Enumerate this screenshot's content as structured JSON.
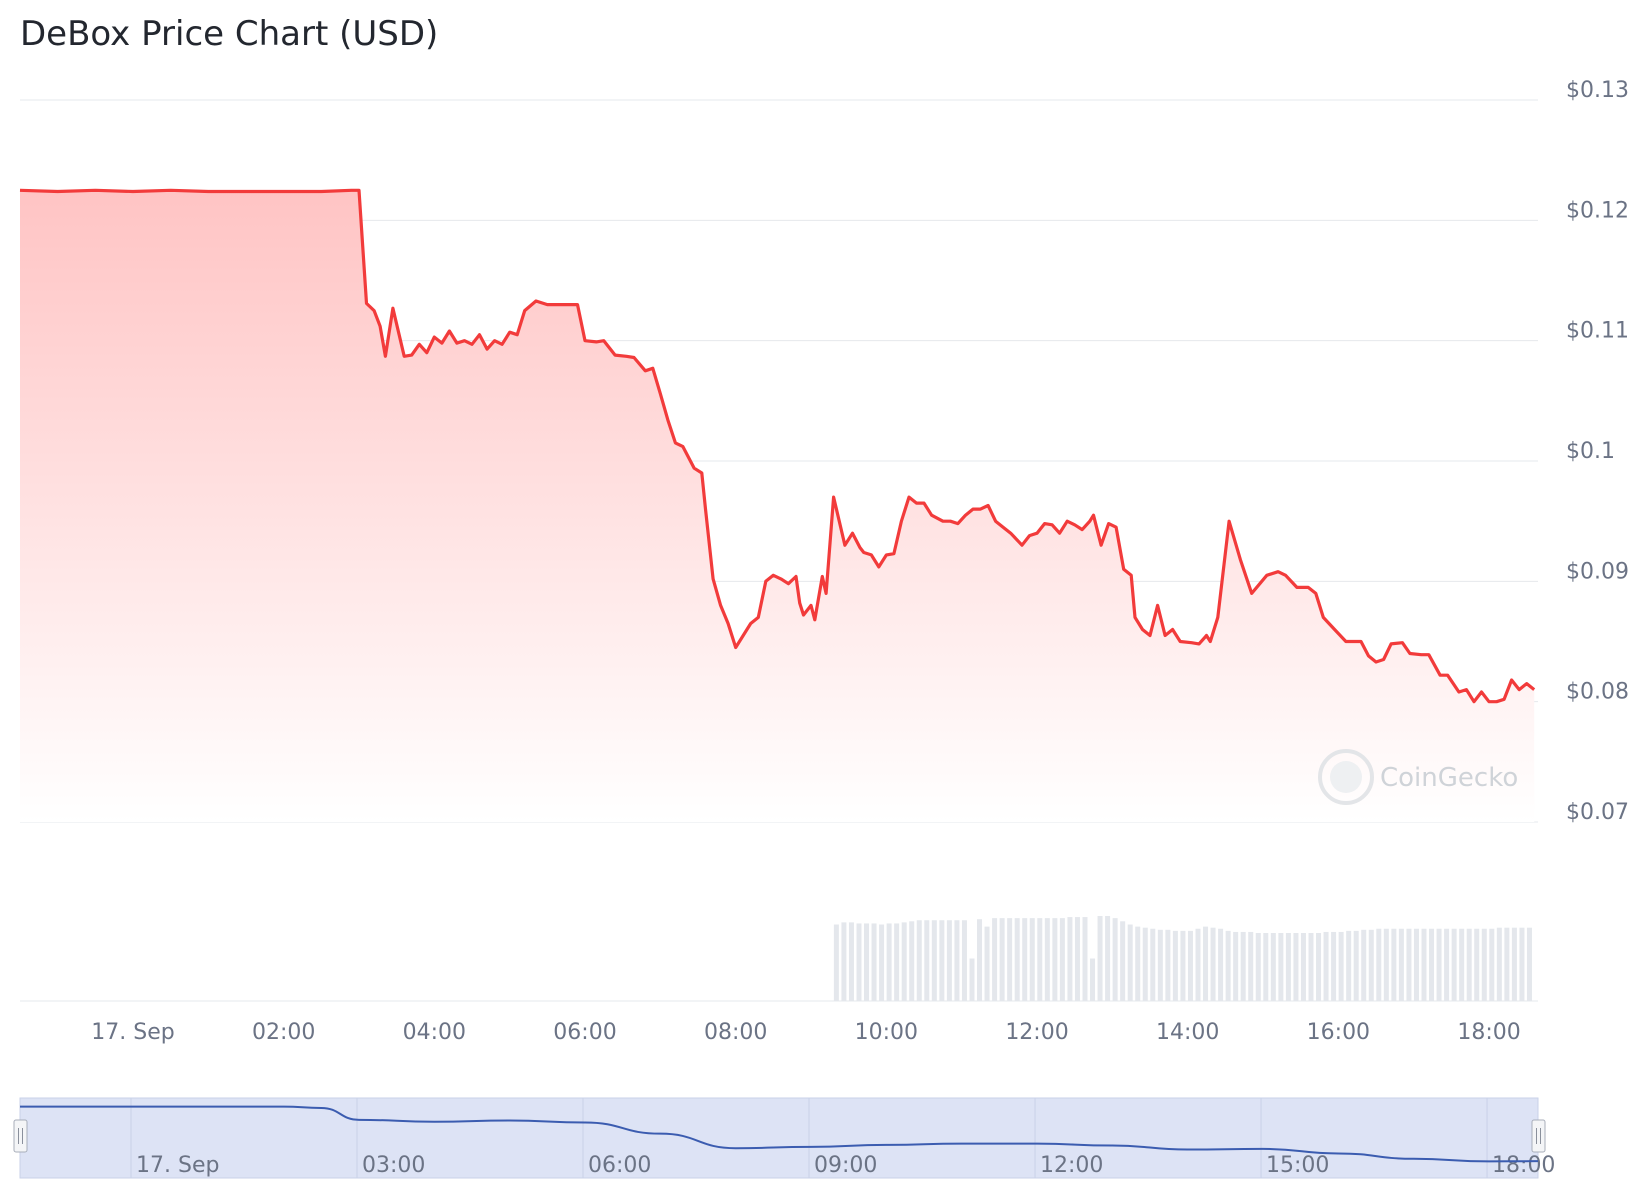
{
  "title": "DeBox Price Chart (USD)",
  "watermark": "CoinGecko",
  "colors": {
    "line": "#f23b3b",
    "area_top": "#ffc4c4",
    "area_bottom": "#ffffff",
    "grid": "#e6e8ec",
    "volume": "#e4e7ec",
    "navigator_fill": "#dde3f5",
    "navigator_line": "#3b5cb0",
    "text": "#6b7385"
  },
  "chart_data": {
    "type": "area",
    "title": "DeBox Price Chart (USD)",
    "ylabel": "",
    "xlabel": "",
    "ylim": [
      0.07,
      0.13
    ],
    "y_ticks": [
      "$0.13",
      "$0.12",
      "$0.11",
      "$0.1",
      "$0.09",
      "$0.08",
      "$0.07"
    ],
    "y_tick_values": [
      0.13,
      0.12,
      0.11,
      0.1,
      0.09,
      0.08,
      0.07
    ],
    "x_ticks": [
      "17. Sep",
      "02:00",
      "04:00",
      "06:00",
      "08:00",
      "10:00",
      "12:00",
      "14:00",
      "16:00",
      "18:00"
    ],
    "x_tick_hours": [
      0,
      2,
      4,
      6,
      8,
      10,
      12,
      14,
      16,
      18
    ],
    "xlim_hours": [
      -1.5,
      18.65
    ],
    "grid": true,
    "legend": "none",
    "series": [
      {
        "x_hours": [
          -1.5,
          -1.0,
          -0.5,
          0.0,
          0.5,
          1.0,
          1.5,
          2.0,
          2.5,
          2.9,
          3.0,
          3.1,
          3.2,
          3.28,
          3.35,
          3.45,
          3.6,
          3.7,
          3.8,
          3.9,
          4.0,
          4.1,
          4.2,
          4.3,
          4.4,
          4.5,
          4.6,
          4.7,
          4.8,
          4.9,
          5.0,
          5.1,
          5.2,
          5.35,
          5.5,
          5.7,
          5.85,
          5.9,
          6.0,
          6.15,
          6.25,
          6.4,
          6.55,
          6.65,
          6.8,
          6.9,
          7.0,
          7.1,
          7.2,
          7.3,
          7.45,
          7.55,
          7.6,
          7.7,
          7.8,
          7.9,
          8.0,
          8.1,
          8.2,
          8.3,
          8.4,
          8.5,
          8.6,
          8.7,
          8.8,
          8.85,
          8.9,
          9.0,
          9.05,
          9.15,
          9.2,
          9.3,
          9.45,
          9.55,
          9.65,
          9.7,
          9.8,
          9.9,
          10.0,
          10.1,
          10.2,
          10.3,
          10.4,
          10.5,
          10.6,
          10.75,
          10.85,
          10.95,
          11.05,
          11.15,
          11.25,
          11.35,
          11.45,
          11.55,
          11.65,
          11.8,
          11.9,
          12.0,
          12.1,
          12.2,
          12.3,
          12.4,
          12.5,
          12.6,
          12.7,
          12.75,
          12.85,
          12.95,
          13.05,
          13.15,
          13.25,
          13.3,
          13.4,
          13.5,
          13.6,
          13.7,
          13.8,
          13.9,
          14.05,
          14.15,
          14.25,
          14.3,
          14.4,
          14.55,
          14.7,
          14.85,
          15.05,
          15.2,
          15.3,
          15.45,
          15.6,
          15.7,
          15.8,
          15.95,
          16.1,
          16.3,
          16.4,
          16.5,
          16.6,
          16.7,
          16.85,
          16.95,
          17.1,
          17.2,
          17.35,
          17.45,
          17.6,
          17.7,
          17.8,
          17.9,
          18.0,
          18.1,
          18.2,
          18.3,
          18.4,
          18.5,
          18.6
        ],
        "values": [
          0.1225,
          0.1224,
          0.1225,
          0.1224,
          0.1225,
          0.1224,
          0.1224,
          0.1224,
          0.1224,
          0.1225,
          0.1225,
          0.1131,
          0.1125,
          0.1112,
          0.1087,
          0.1127,
          0.1087,
          0.1088,
          0.1097,
          0.109,
          0.1103,
          0.1098,
          0.1108,
          0.1098,
          0.11,
          0.1097,
          0.1105,
          0.1093,
          0.11,
          0.1097,
          0.1107,
          0.1105,
          0.1125,
          0.1133,
          0.113,
          0.113,
          0.113,
          0.113,
          0.11,
          0.1099,
          0.11,
          0.1088,
          0.1087,
          0.1086,
          0.1075,
          0.1077,
          0.1056,
          0.1034,
          0.1015,
          0.1012,
          0.0994,
          0.099,
          0.096,
          0.0902,
          0.088,
          0.0865,
          0.0845,
          0.0855,
          0.0865,
          0.087,
          0.09,
          0.0905,
          0.0902,
          0.0898,
          0.0904,
          0.0882,
          0.0872,
          0.088,
          0.0868,
          0.0904,
          0.089,
          0.097,
          0.093,
          0.094,
          0.0928,
          0.0924,
          0.0922,
          0.0912,
          0.0922,
          0.0923,
          0.095,
          0.097,
          0.0965,
          0.0965,
          0.0955,
          0.095,
          0.095,
          0.0948,
          0.0955,
          0.096,
          0.096,
          0.0963,
          0.095,
          0.0945,
          0.094,
          0.093,
          0.0938,
          0.094,
          0.0948,
          0.0947,
          0.094,
          0.095,
          0.0947,
          0.0943,
          0.095,
          0.0955,
          0.093,
          0.0948,
          0.0945,
          0.091,
          0.0905,
          0.087,
          0.086,
          0.0855,
          0.088,
          0.0855,
          0.086,
          0.085,
          0.0849,
          0.0848,
          0.0855,
          0.085,
          0.087,
          0.095,
          0.0918,
          0.089,
          0.0905,
          0.0908,
          0.0905,
          0.0895,
          0.0895,
          0.089,
          0.087,
          0.086,
          0.085,
          0.085,
          0.0838,
          0.0833,
          0.0835,
          0.0848,
          0.0849,
          0.084,
          0.0839,
          0.0839,
          0.0822,
          0.0822,
          0.0808,
          0.081,
          0.08,
          0.0808,
          0.08,
          0.08,
          0.0802,
          0.0818,
          0.081,
          0.0815,
          0.081
        ]
      }
    ],
    "volume": {
      "x_hours": [
        9.35,
        9.45,
        9.55,
        9.65,
        9.75,
        9.85,
        9.95,
        10.05,
        10.15,
        10.25,
        10.35,
        10.45,
        10.55,
        10.65,
        10.75,
        10.85,
        10.95,
        11.05,
        11.15,
        11.25,
        11.35,
        11.45,
        11.55,
        11.65,
        11.75,
        11.85,
        11.95,
        12.05,
        12.15,
        12.25,
        12.35,
        12.45,
        12.55,
        12.65,
        12.75,
        12.85,
        12.95,
        13.05,
        13.15,
        13.25,
        13.35,
        13.45,
        13.55,
        13.65,
        13.75,
        13.85,
        13.95,
        14.05,
        14.15,
        14.25,
        14.35,
        14.45,
        14.55,
        14.65,
        14.75,
        14.85,
        14.95,
        15.05,
        15.15,
        15.25,
        15.35,
        15.45,
        15.55,
        15.65,
        15.75,
        15.85,
        15.95,
        16.05,
        16.15,
        16.25,
        16.35,
        16.45,
        16.55,
        16.65,
        16.75,
        16.85,
        16.95,
        17.05,
        17.15,
        17.25,
        17.35,
        17.45,
        17.55,
        17.65,
        17.75,
        17.85,
        17.95,
        18.05,
        18.15,
        18.25,
        18.35,
        18.45,
        18.55
      ],
      "values": [
        72,
        74,
        74,
        73,
        73,
        73,
        72,
        73,
        73,
        74,
        75,
        76,
        76,
        76,
        76,
        76,
        76,
        76,
        40,
        77,
        70,
        78,
        78,
        78,
        78,
        78,
        78,
        78,
        78,
        78,
        78,
        79,
        79,
        79,
        40,
        80,
        80,
        78,
        75,
        72,
        70,
        69,
        68,
        67,
        67,
        66,
        66,
        66,
        68,
        70,
        69,
        68,
        66,
        65,
        65,
        65,
        64,
        64,
        64,
        64,
        64,
        64,
        64,
        64,
        64,
        65,
        65,
        65,
        66,
        66,
        67,
        67,
        68,
        68,
        68,
        68,
        68,
        68,
        68,
        68,
        68,
        68,
        68,
        68,
        68,
        68,
        68,
        68,
        69,
        69,
        69,
        69,
        69
      ]
    },
    "navigator": {
      "ticks": [
        "17. Sep",
        "03:00",
        "06:00",
        "09:00",
        "12:00",
        "15:00",
        "18:00"
      ],
      "tick_hours": [
        0,
        3,
        6,
        9,
        12,
        15,
        18
      ],
      "x_hours": [
        -1.5,
        0,
        1,
        2,
        2.5,
        3,
        4,
        5,
        6,
        7,
        8,
        9,
        10,
        11,
        12,
        13,
        14,
        15,
        16,
        17,
        18,
        18.65
      ],
      "values": [
        0.1225,
        0.1225,
        0.1225,
        0.1225,
        0.1215,
        0.1125,
        0.111,
        0.112,
        0.1105,
        0.102,
        0.091,
        0.092,
        0.0935,
        0.0945,
        0.0945,
        0.093,
        0.09,
        0.0905,
        0.087,
        0.083,
        0.081,
        0.0812
      ]
    }
  }
}
